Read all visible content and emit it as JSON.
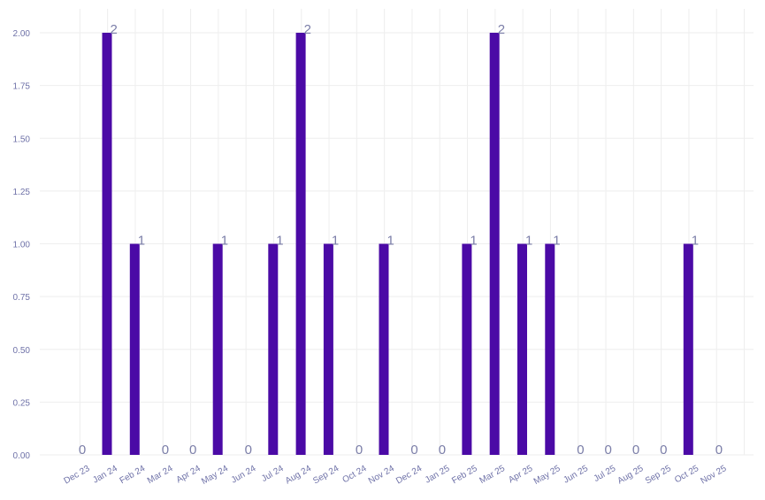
{
  "colors": {
    "bar": "#4b0aa6",
    "tick_text": "#6f72a8",
    "data_label": "#7b7ea8",
    "grid": "#eeeeee"
  },
  "chart_data": {
    "type": "bar",
    "categories": [
      "Dec 23",
      "Jan 24",
      "Feb 24",
      "Mar 24",
      "Apr 24",
      "May 24",
      "Jun 24",
      "Jul 24",
      "Aug 24",
      "Sep 24",
      "Oct 24",
      "Nov 24",
      "Dec 24",
      "Jan 25",
      "Feb 25",
      "Mar 25",
      "Apr 25",
      "May 25",
      "Jun 25",
      "Jul 25",
      "Aug 25",
      "Sep 25",
      "Oct 25",
      "Nov 25"
    ],
    "values": [
      0,
      2,
      1,
      0,
      0,
      1,
      0,
      1,
      2,
      1,
      0,
      1,
      0,
      0,
      1,
      2,
      1,
      1,
      0,
      0,
      0,
      0,
      1,
      0
    ],
    "data_labels": [
      "0",
      "2",
      "1",
      "0",
      "0",
      "1",
      "0",
      "1",
      "2",
      "1",
      "0",
      "1",
      "0",
      "0",
      "1",
      "2",
      "1",
      "1",
      "0",
      "0",
      "0",
      "0",
      "1",
      "0"
    ],
    "ylim": [
      0,
      2
    ],
    "yticks": [
      0,
      0.25,
      0.5,
      0.75,
      1,
      1.25,
      1.5,
      1.75,
      2
    ],
    "ytick_labels": [
      "0.00",
      "0.25",
      "0.50",
      "0.75",
      "1.00",
      "1.25",
      "1.50",
      "1.75",
      "2.00"
    ],
    "grid": true,
    "x_tick_rotation_deg": -30,
    "title": "",
    "xlabel": "",
    "ylabel": ""
  }
}
